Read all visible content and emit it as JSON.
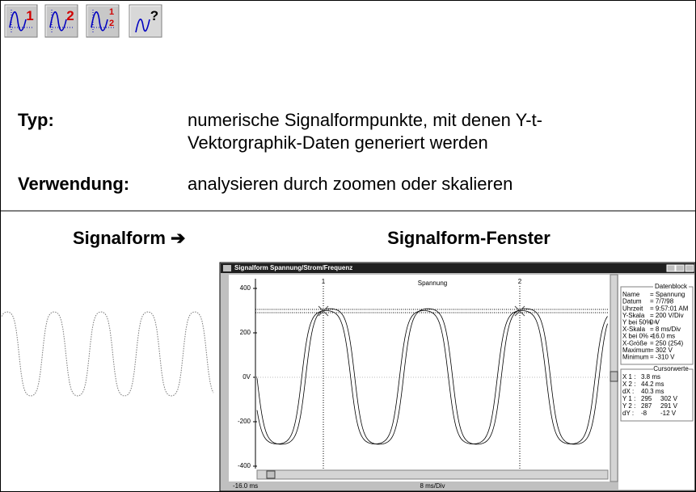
{
  "toolbar": {
    "icons": [
      {
        "label": "1"
      },
      {
        "label": "2"
      },
      {
        "label": "1",
        "sublabel": "2"
      },
      {
        "label": "?"
      }
    ]
  },
  "typ": {
    "label": "Typ:",
    "text": [
      "numerische Signalformpunkte, mit denen Y-t-",
      "Vektorgraphik-Daten generiert werden"
    ]
  },
  "verwendung": {
    "label": "Verwendung:",
    "text": "analysieren durch zoomen oder skalieren"
  },
  "left_heading": "Signalform ➔",
  "right_heading": "Signalform-Fenster",
  "window": {
    "title": "Signalform  Spannung/Strom/Frequenz",
    "channel": "Spannung",
    "cursors": [
      "1",
      "2"
    ],
    "y_labels": [
      "400",
      "200",
      "0V",
      "-200",
      "-400"
    ],
    "x_start": "-16.0 ms",
    "x_scale": "8 ms/Div",
    "datenblock": {
      "title": "Datenblock",
      "rows": [
        [
          "Name",
          "= Spannung"
        ],
        [
          "Datum",
          "= 7/7/98"
        ],
        [
          "Uhrzeit",
          "= 9:57:01 AM"
        ],
        [
          "Y-Skala",
          "= 200   V/Div"
        ],
        [
          "Y bei 50% =",
          "0   V"
        ],
        [
          "X-Skala",
          "=     8   ms/Div"
        ],
        [
          "X bei 0% =",
          "-16.0 ms"
        ],
        [
          "X-Größe",
          "= 250 (254)"
        ],
        [
          "Maximum",
          "= 302   V"
        ],
        [
          "Minimum",
          "= -310   V"
        ]
      ]
    },
    "cursorwerte": {
      "title": "Cursorwerte",
      "rows": [
        [
          "X 1 :",
          "3.8 ms",
          ""
        ],
        [
          "X 2 :",
          "44.2 ms",
          ""
        ],
        [
          "dX :",
          "40.3 ms",
          ""
        ],
        [
          "Y 1 :",
          "295",
          "302 V"
        ],
        [
          "Y 2 :",
          "287",
          "291 V"
        ],
        [
          "dY :",
          "-8",
          "-12 V"
        ]
      ]
    }
  }
}
